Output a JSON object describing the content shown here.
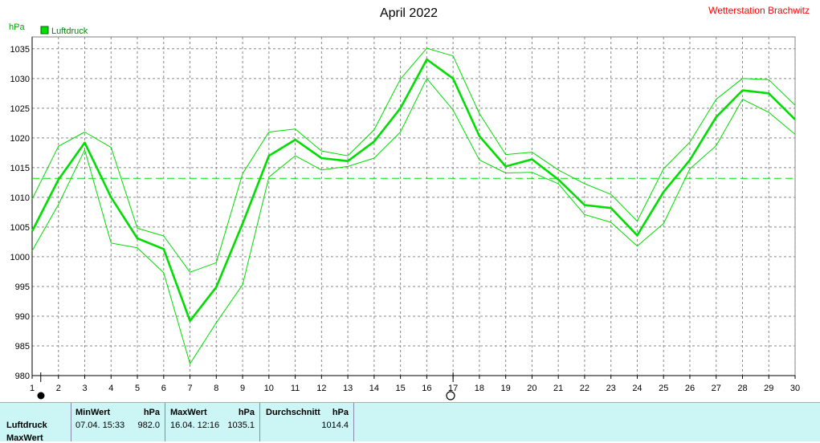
{
  "title": "April 2022",
  "station": "Wetterstation Brachwitz",
  "chart_data": {
    "type": "line",
    "ylabel": "hPa",
    "ylim": [
      980,
      1037
    ],
    "yticks": [
      980,
      985,
      990,
      995,
      1000,
      1005,
      1010,
      1015,
      1020,
      1025,
      1030,
      1035
    ],
    "x": [
      1,
      2,
      3,
      4,
      5,
      6,
      7,
      8,
      9,
      10,
      11,
      12,
      13,
      14,
      15,
      16,
      17,
      18,
      19,
      20,
      21,
      22,
      23,
      24,
      25,
      26,
      27,
      28,
      29,
      30
    ],
    "legend": "Luftdruck",
    "average": 1013.2,
    "series": [
      {
        "name": "Luftdruck",
        "role": "mean",
        "color": "#00dd00",
        "values": [
          1004.3,
          1013.0,
          1019.2,
          1010.0,
          1003.1,
          1001.3,
          989.2,
          994.9,
          1005.6,
          1017.0,
          1019.7,
          1016.6,
          1016.1,
          1019.4,
          1025.0,
          1033.2,
          1030.0,
          1020.3,
          1015.2,
          1016.4,
          1013.0,
          1008.7,
          1008.2,
          1003.6,
          1010.9,
          1016.3,
          1023.5,
          1028.0,
          1027.5,
          1023.1
        ]
      },
      {
        "role": "max",
        "color": "#00dd00",
        "values": [
          1009.7,
          1018.6,
          1021.0,
          1018.4,
          1004.8,
          1003.5,
          997.4,
          999.0,
          1014.0,
          1021.0,
          1021.5,
          1017.8,
          1017.0,
          1021.4,
          1029.9,
          1035.1,
          1033.8,
          1024.1,
          1017.2,
          1017.6,
          1014.6,
          1012.3,
          1010.5,
          1006.0,
          1014.8,
          1019.3,
          1026.5,
          1030.0,
          1029.8,
          1025.5
        ]
      },
      {
        "role": "min",
        "color": "#00dd00",
        "values": [
          1001.0,
          1008.8,
          1018.0,
          1002.3,
          1001.5,
          997.3,
          982.0,
          988.9,
          995.3,
          1013.4,
          1017.0,
          1014.6,
          1015.2,
          1016.6,
          1021.0,
          1030.0,
          1024.7,
          1016.3,
          1014.1,
          1014.2,
          1012.3,
          1007.1,
          1005.8,
          1001.8,
          1005.6,
          1014.8,
          1018.7,
          1026.5,
          1024.3,
          1020.6
        ]
      }
    ]
  },
  "stats": {
    "row_label": "Luftdruck",
    "row_label_2": "MaxWert",
    "min_header": "MinWert",
    "min_unit": "hPa",
    "min_when": "07.04.  15:33",
    "min_value": "982.0",
    "max_header": "MaxWert",
    "max_unit": "hPa",
    "max_when": "16.04.  12:16",
    "max_value": "1035.1",
    "avg_header": "Durchschnitt",
    "avg_unit": "hPa",
    "avg_value": "1014.4"
  },
  "colors": {
    "line": "#00dd00",
    "grid": "#888888",
    "panel": "#ccf5f5",
    "station": "#ff0000"
  }
}
